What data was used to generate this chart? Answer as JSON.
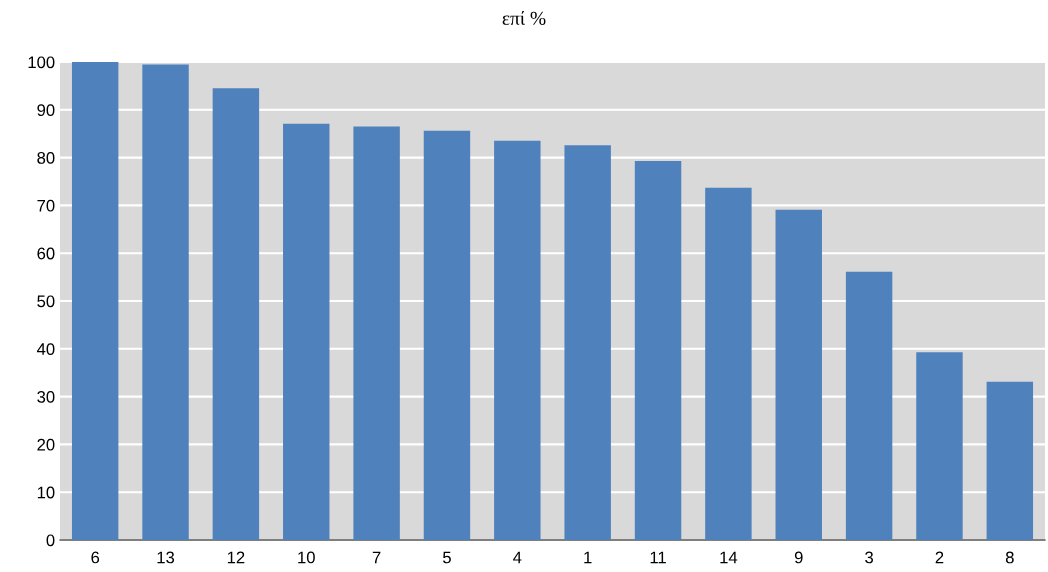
{
  "chart_data": {
    "type": "bar",
    "title": "επί %",
    "categories": [
      "6",
      "13",
      "12",
      "10",
      "7",
      "5",
      "4",
      "1",
      "11",
      "14",
      "9",
      "3",
      "2",
      "8"
    ],
    "values": [
      100,
      99.5,
      94.5,
      87.1,
      86.5,
      85.6,
      83.5,
      82.6,
      79.3,
      73.7,
      69.1,
      56.1,
      39.3,
      33.1
    ],
    "color": "#4f81bd",
    "ylim": [
      0,
      100
    ],
    "yticks": [
      0,
      10,
      20,
      30,
      40,
      50,
      60,
      70,
      80,
      90,
      100
    ],
    "grid": "y"
  }
}
